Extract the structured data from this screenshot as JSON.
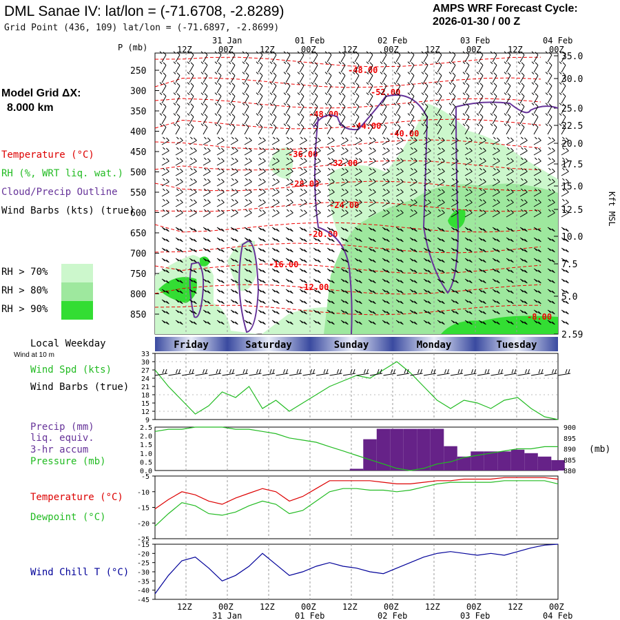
{
  "header": {
    "title": "DML Sanae IV:  lat/lon = (-71.6708, -2.8289)",
    "grid_point": "Grid Point (436, 109) lat/lon = (-71.6897, -2.8699)",
    "cycle_line1": "AMPS WRF Forecast Cycle:",
    "cycle_line2": "2026-01-30 / 00  Z",
    "model_grid_label": "Model Grid ΔX:",
    "model_grid_value": "8.000 km"
  },
  "legend": {
    "temperature": "Temperature (°C)",
    "rh": "RH (%, WRT liq. wat.)",
    "cloud": "Cloud/Precip Outline",
    "wind_barbs": "Wind Barbs (kts) (true)",
    "rh70": "RH > 70%",
    "rh80": "RH > 80%",
    "rh90": "RH > 90%",
    "colors": {
      "rh70": "#ccf7cc",
      "rh80": "#9ee89e",
      "rh90": "#33dd33",
      "temp": "#ee0000",
      "cloud": "#663399"
    }
  },
  "time_axis": {
    "p_unit": "P (mb)",
    "top_dates": [
      "31 Jan",
      "01 Feb",
      "02 Feb",
      "03 Feb",
      "04 Feb"
    ],
    "hour_labels": [
      "12Z",
      "00Z",
      "12Z",
      "00Z",
      "12Z",
      "00Z",
      "12Z",
      "00Z",
      "12Z",
      "00Z"
    ],
    "weekdays": [
      "Friday",
      "Saturday",
      "Sunday",
      "Monday",
      "Tuesday"
    ],
    "local_weekday_label": "Local Weekday",
    "wind_at_label": "Wind at 10 m"
  },
  "chart_data": [
    {
      "type": "contour",
      "name": "cross-section",
      "y_axis_left": {
        "label": "P (mb)",
        "ticks": [
          250,
          300,
          350,
          400,
          450,
          500,
          550,
          600,
          650,
          700,
          750,
          800,
          850
        ]
      },
      "y_axis_right": {
        "label": "Kft MSL",
        "ticks": [
          "35.0",
          "30.0",
          "25.0",
          "22.5",
          "20.0",
          "17.5",
          "15.0",
          "12.5",
          "10.0",
          "7.5",
          "5.0",
          "2.59"
        ]
      },
      "temperature_contour_labels": [
        "-48.00",
        "-52.00",
        "-48.00",
        "-44.00",
        "-40.00",
        "-36.00",
        "-32.00",
        "-28.00",
        "-24.00",
        "-20.00",
        "-16.00",
        "-12.00",
        "-8.00"
      ]
    },
    {
      "type": "line",
      "name": "wind-speed",
      "label": "Wind Spd (kts)",
      "label2": "Wind Barbs (true)",
      "ylim": [
        9,
        33
      ],
      "ticks": [
        9,
        12,
        15,
        18,
        21,
        24,
        27,
        30,
        33
      ],
      "values": [
        27,
        21,
        16,
        11,
        14,
        19,
        17,
        21,
        13,
        16,
        12,
        15,
        18,
        21,
        23,
        25,
        24,
        27,
        30,
        26,
        21,
        16,
        13,
        16,
        15,
        13,
        16,
        17,
        13,
        10,
        9
      ]
    },
    {
      "type": "bar+line",
      "name": "precip-pressure",
      "label_precip": [
        "Precip (mm)",
        "liq. equiv.",
        "3-hr accum"
      ],
      "label_pressure": "Pressure (mb)",
      "pressure_unit": "(mb)",
      "precip_ticks": [
        "0.0",
        "0.5",
        "1.0",
        "1.5",
        "2.0",
        "2.5"
      ],
      "pressure_ticks": [
        "880",
        "885",
        "890",
        "895",
        "900"
      ],
      "precip_ylim": [
        0,
        2.5
      ],
      "pressure_ylim": [
        880,
        900
      ],
      "precip": [
        0,
        0,
        0,
        0,
        0,
        0,
        0,
        0,
        0,
        0,
        0,
        0,
        0,
        0,
        0,
        0.1,
        1.8,
        2.4,
        2.4,
        2.4,
        2.4,
        2.4,
        1.4,
        0.8,
        1.1,
        1.1,
        1.1,
        1.2,
        1.0,
        0.8,
        0.6
      ],
      "pressure": [
        898,
        899,
        899,
        900,
        900,
        900,
        899,
        899,
        898,
        897,
        895,
        894,
        893,
        891,
        889,
        887,
        885,
        883,
        881,
        880,
        881,
        883,
        884,
        886,
        887,
        888,
        889,
        890,
        890,
        891,
        891
      ]
    },
    {
      "type": "line",
      "name": "temp-dewpoint",
      "label_temp": "Temperature (°C)",
      "label_dew": "Dewpoint (°C)",
      "ylim": [
        -25,
        -5
      ],
      "ticks": [
        -25,
        -20,
        -15,
        -10,
        -5
      ],
      "temperature": [
        -15.5,
        -12.5,
        -10,
        -11,
        -13,
        -14,
        -12,
        -10.5,
        -9,
        -10,
        -13,
        -11.5,
        -9,
        -6.5,
        -6.5,
        -6.5,
        -6.5,
        -7,
        -7.5,
        -7.5,
        -7,
        -6.5,
        -6.5,
        -6,
        -6,
        -6,
        -5.5,
        -5.5,
        -5.5,
        -5.5,
        -6
      ],
      "dewpoint": [
        -21,
        -17,
        -13.5,
        -14.5,
        -17,
        -17.5,
        -16.5,
        -14.5,
        -13,
        -14,
        -17,
        -16,
        -13,
        -10,
        -9,
        -9,
        -9.5,
        -9.5,
        -10,
        -9.5,
        -8.5,
        -7.5,
        -7,
        -7,
        -7,
        -7,
        -6.5,
        -6.5,
        -6.5,
        -6.5,
        -7.5
      ]
    },
    {
      "type": "line",
      "name": "wind-chill",
      "label": "Wind Chill T (°C)",
      "ylim": [
        -45,
        -15
      ],
      "ticks": [
        -45,
        -40,
        -35,
        -30,
        -25,
        -20,
        -15
      ],
      "values": [
        -42,
        -32,
        -24,
        -22,
        -28,
        -35,
        -32,
        -27,
        -20,
        -26,
        -32,
        -30,
        -27,
        -25,
        -27,
        -28,
        -30,
        -31,
        -28,
        -25,
        -22,
        -20,
        -19,
        -20,
        -21,
        -20,
        -21,
        -19,
        -17,
        -15.5,
        -15
      ]
    }
  ]
}
